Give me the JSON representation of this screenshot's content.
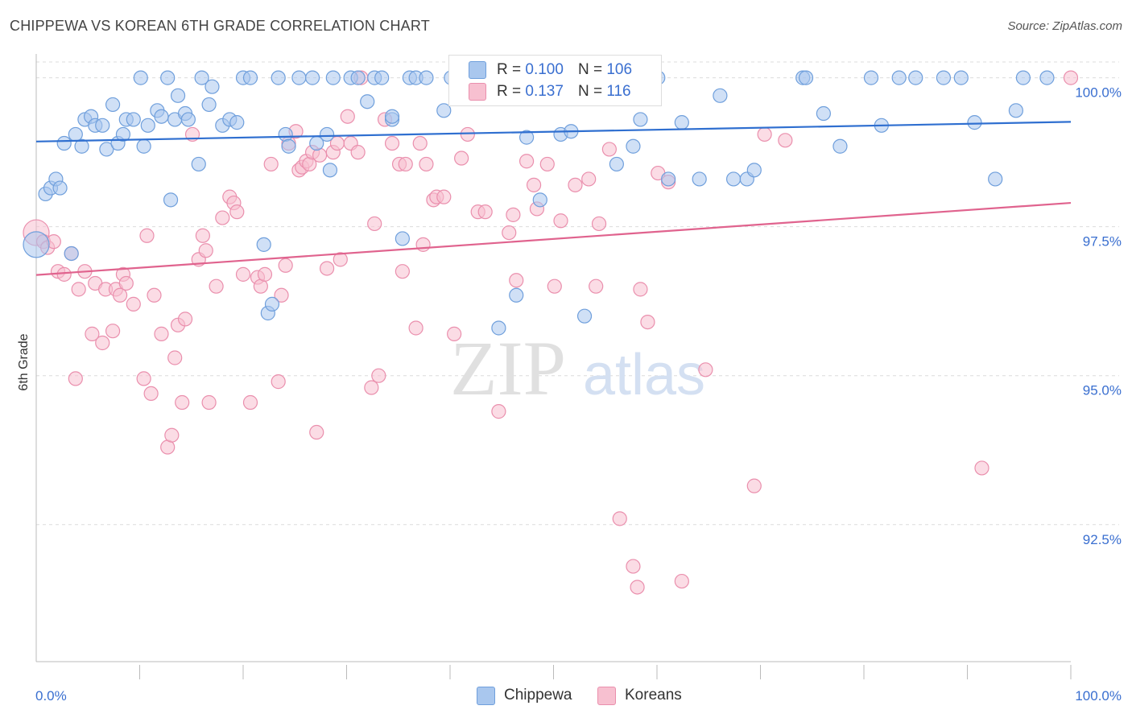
{
  "title": "CHIPPEWA VS KOREAN 6TH GRADE CORRELATION CHART",
  "source": "Source: ZipAtlas.com",
  "watermark": {
    "zip": "ZIP",
    "atlas": "atlas"
  },
  "colors": {
    "chippewa_fill": "#a9c7ee",
    "chippewa_stroke": "#6f9fdc",
    "chippewa_line": "#2f6fd0",
    "koreans_fill": "#f7c0d0",
    "koreans_stroke": "#ea8fad",
    "koreans_line": "#e0638e",
    "axis_text": "#3a6fd0",
    "grid": "#dcdcdc"
  },
  "legend": {
    "chippewa": {
      "r_label": "R =",
      "r_value": "0.100",
      "n_label": "N =",
      "n_value": "106"
    },
    "koreans": {
      "r_label": "R =",
      "r_value": "0.137",
      "n_label": "N =",
      "n_value": "116"
    }
  },
  "bottom_legend": {
    "chippewa": "Chippewa",
    "koreans": "Koreans"
  },
  "chart_data": {
    "type": "scatter",
    "title": "CHIPPEWA VS KOREAN 6TH GRADE CORRELATION CHART",
    "xlabel": "",
    "ylabel": "6th Grade",
    "xlim": [
      0,
      100
    ],
    "ylim": [
      90.2,
      100.4
    ],
    "x_tick_labels": [
      "0.0%",
      "100.0%"
    ],
    "y_ticks": [
      {
        "value": 100.0,
        "label": "100.0%"
      },
      {
        "value": 97.5,
        "label": "97.5%"
      },
      {
        "value": 95.0,
        "label": "95.0%"
      },
      {
        "value": 92.5,
        "label": "92.5%"
      }
    ],
    "grid": true,
    "legend_position": "top-center",
    "series": [
      {
        "name": "Chippewa",
        "r": 0.1,
        "n": 106,
        "trend": {
          "x": [
            0,
            100
          ],
          "y": [
            98.93,
            99.26
          ]
        },
        "points": [
          [
            0,
            97.2
          ],
          [
            0.9,
            98.05
          ],
          [
            1.4,
            98.15
          ],
          [
            1.9,
            98.3
          ],
          [
            2.3,
            98.15
          ],
          [
            2.7,
            98.9
          ],
          [
            3.4,
            97.05
          ],
          [
            3.8,
            99.05
          ],
          [
            4.4,
            98.85
          ],
          [
            4.7,
            99.3
          ],
          [
            5.3,
            99.35
          ],
          [
            5.7,
            99.2
          ],
          [
            6.4,
            99.2
          ],
          [
            6.8,
            98.8
          ],
          [
            7.4,
            99.55
          ],
          [
            7.9,
            98.9
          ],
          [
            8.4,
            99.05
          ],
          [
            8.7,
            99.3
          ],
          [
            9.4,
            99.3
          ],
          [
            10.1,
            100.0
          ],
          [
            10.4,
            98.85
          ],
          [
            10.8,
            99.2
          ],
          [
            11.7,
            99.45
          ],
          [
            12.1,
            99.35
          ],
          [
            12.7,
            100.0
          ],
          [
            13.0,
            97.95
          ],
          [
            13.4,
            99.3
          ],
          [
            13.7,
            99.7
          ],
          [
            14.4,
            99.4
          ],
          [
            14.7,
            99.3
          ],
          [
            15.7,
            98.55
          ],
          [
            16.0,
            100.0
          ],
          [
            16.7,
            99.55
          ],
          [
            17.0,
            99.85
          ],
          [
            18.0,
            99.2
          ],
          [
            18.7,
            99.3
          ],
          [
            19.4,
            99.25
          ],
          [
            20.0,
            100.0
          ],
          [
            20.7,
            100.0
          ],
          [
            22.0,
            97.2
          ],
          [
            22.4,
            96.05
          ],
          [
            22.8,
            96.2
          ],
          [
            23.4,
            100.0
          ],
          [
            24.1,
            99.05
          ],
          [
            24.4,
            98.85
          ],
          [
            25.4,
            100.0
          ],
          [
            26.7,
            100.0
          ],
          [
            27.1,
            98.9
          ],
          [
            28.1,
            99.05
          ],
          [
            28.4,
            98.45
          ],
          [
            28.7,
            100.0
          ],
          [
            30.4,
            100.0
          ],
          [
            31.1,
            100.0
          ],
          [
            32.0,
            99.6
          ],
          [
            32.7,
            100.0
          ],
          [
            33.4,
            100.0
          ],
          [
            34.4,
            99.3
          ],
          [
            34.4,
            99.35
          ],
          [
            35.4,
            97.3
          ],
          [
            36.1,
            100.0
          ],
          [
            36.7,
            100.0
          ],
          [
            37.7,
            100.0
          ],
          [
            39.4,
            99.45
          ],
          [
            40.1,
            100.0
          ],
          [
            41.1,
            100.0
          ],
          [
            42.1,
            100.0
          ],
          [
            44.7,
            95.8
          ],
          [
            45.4,
            100.0
          ],
          [
            46.4,
            96.35
          ],
          [
            47.4,
            99.0
          ],
          [
            47.7,
            100.0
          ],
          [
            48.7,
            97.95
          ],
          [
            49.4,
            100.0
          ],
          [
            50.7,
            99.05
          ],
          [
            51.7,
            99.1
          ],
          [
            53.0,
            96.0
          ],
          [
            54.4,
            100.0
          ],
          [
            55.1,
            100.0
          ],
          [
            56.1,
            98.55
          ],
          [
            57.1,
            100.0
          ],
          [
            57.7,
            98.85
          ],
          [
            58.4,
            99.3
          ],
          [
            58.7,
            100.0
          ],
          [
            60.1,
            100.0
          ],
          [
            61.1,
            98.3
          ],
          [
            62.4,
            99.25
          ],
          [
            64.1,
            98.3
          ],
          [
            66.1,
            99.7
          ],
          [
            67.4,
            98.3
          ],
          [
            68.7,
            98.3
          ],
          [
            69.4,
            98.45
          ],
          [
            74.1,
            100.0
          ],
          [
            74.4,
            100.0
          ],
          [
            76.1,
            99.4
          ],
          [
            77.7,
            98.85
          ],
          [
            80.7,
            100.0
          ],
          [
            81.7,
            99.2
          ],
          [
            83.4,
            100.0
          ],
          [
            85.0,
            100.0
          ],
          [
            87.7,
            100.0
          ],
          [
            89.4,
            100.0
          ],
          [
            90.7,
            99.25
          ],
          [
            92.7,
            98.3
          ],
          [
            94.7,
            99.45
          ],
          [
            95.4,
            100.0
          ],
          [
            97.7,
            100.0
          ]
        ]
      },
      {
        "name": "Koreans",
        "r": 0.137,
        "n": 116,
        "trend": {
          "x": [
            0,
            100
          ],
          "y": [
            96.69,
            97.9
          ]
        },
        "points": [
          [
            0,
            97.4
          ],
          [
            0.7,
            97.25
          ],
          [
            1.1,
            97.15
          ],
          [
            1.7,
            97.25
          ],
          [
            2.1,
            96.75
          ],
          [
            2.7,
            96.7
          ],
          [
            3.4,
            97.05
          ],
          [
            3.8,
            94.95
          ],
          [
            4.1,
            96.45
          ],
          [
            4.7,
            96.75
          ],
          [
            5.4,
            95.7
          ],
          [
            5.7,
            96.55
          ],
          [
            6.4,
            95.55
          ],
          [
            6.7,
            96.45
          ],
          [
            7.4,
            95.75
          ],
          [
            7.7,
            96.45
          ],
          [
            8.1,
            96.35
          ],
          [
            8.4,
            96.7
          ],
          [
            8.7,
            96.55
          ],
          [
            9.4,
            96.2
          ],
          [
            10.4,
            94.95
          ],
          [
            10.7,
            97.35
          ],
          [
            11.1,
            94.7
          ],
          [
            11.4,
            96.35
          ],
          [
            12.1,
            95.7
          ],
          [
            12.7,
            93.8
          ],
          [
            13.1,
            94.0
          ],
          [
            13.4,
            95.3
          ],
          [
            13.7,
            95.85
          ],
          [
            14.1,
            94.55
          ],
          [
            14.4,
            95.95
          ],
          [
            15.1,
            99.05
          ],
          [
            15.7,
            96.95
          ],
          [
            16.1,
            97.35
          ],
          [
            16.4,
            97.1
          ],
          [
            16.7,
            94.55
          ],
          [
            17.4,
            96.5
          ],
          [
            18.0,
            97.65
          ],
          [
            18.7,
            98.0
          ],
          [
            19.1,
            97.9
          ],
          [
            19.4,
            97.75
          ],
          [
            20.0,
            96.7
          ],
          [
            20.7,
            94.55
          ],
          [
            21.4,
            96.65
          ],
          [
            21.7,
            96.5
          ],
          [
            22.1,
            96.7
          ],
          [
            22.7,
            98.55
          ],
          [
            23.4,
            94.9
          ],
          [
            23.7,
            96.35
          ],
          [
            24.1,
            96.85
          ],
          [
            24.4,
            98.9
          ],
          [
            25.1,
            99.1
          ],
          [
            25.4,
            98.45
          ],
          [
            25.7,
            98.5
          ],
          [
            26.1,
            98.6
          ],
          [
            26.4,
            98.55
          ],
          [
            26.7,
            98.75
          ],
          [
            27.1,
            94.05
          ],
          [
            27.4,
            98.7
          ],
          [
            28.1,
            96.8
          ],
          [
            28.7,
            98.75
          ],
          [
            29.1,
            98.9
          ],
          [
            29.4,
            96.95
          ],
          [
            30.1,
            99.35
          ],
          [
            30.4,
            98.9
          ],
          [
            31.1,
            98.75
          ],
          [
            31.4,
            100.0
          ],
          [
            32.4,
            94.8
          ],
          [
            32.7,
            97.55
          ],
          [
            33.1,
            95.0
          ],
          [
            33.7,
            99.3
          ],
          [
            34.4,
            98.9
          ],
          [
            35.1,
            98.55
          ],
          [
            35.4,
            96.75
          ],
          [
            35.7,
            98.55
          ],
          [
            36.7,
            95.8
          ],
          [
            37.1,
            98.9
          ],
          [
            37.4,
            97.2
          ],
          [
            37.7,
            98.55
          ],
          [
            38.4,
            97.95
          ],
          [
            38.7,
            98.0
          ],
          [
            39.4,
            98.0
          ],
          [
            40.4,
            95.7
          ],
          [
            41.1,
            98.65
          ],
          [
            41.7,
            99.05
          ],
          [
            42.7,
            97.75
          ],
          [
            43.4,
            97.75
          ],
          [
            44.7,
            94.4
          ],
          [
            45.7,
            97.4
          ],
          [
            46.1,
            97.7
          ],
          [
            46.4,
            96.6
          ],
          [
            47.4,
            98.6
          ],
          [
            48.1,
            98.2
          ],
          [
            48.4,
            97.8
          ],
          [
            49.4,
            98.55
          ],
          [
            50.1,
            96.5
          ],
          [
            50.7,
            97.6
          ],
          [
            52.1,
            98.2
          ],
          [
            53.4,
            98.3
          ],
          [
            54.1,
            96.5
          ],
          [
            54.4,
            97.55
          ],
          [
            55.4,
            98.8
          ],
          [
            56.4,
            92.6
          ],
          [
            57.7,
            91.8
          ],
          [
            58.1,
            91.45
          ],
          [
            58.4,
            96.45
          ],
          [
            59.1,
            95.9
          ],
          [
            60.1,
            98.4
          ],
          [
            61.1,
            98.25
          ],
          [
            62.4,
            91.55
          ],
          [
            64.7,
            95.1
          ],
          [
            69.4,
            93.15
          ],
          [
            70.4,
            99.05
          ],
          [
            72.4,
            98.95
          ],
          [
            91.4,
            93.45
          ],
          [
            100.0,
            100.0
          ]
        ]
      }
    ]
  }
}
